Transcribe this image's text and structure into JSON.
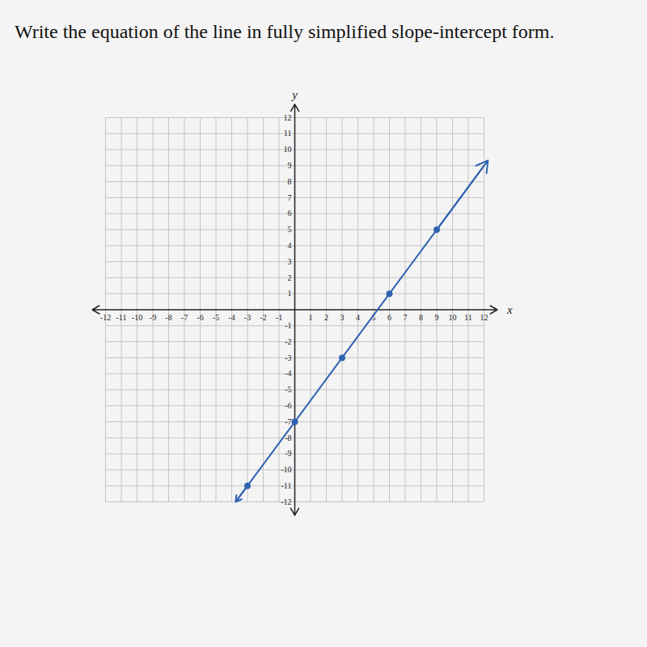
{
  "chart_data": {
    "type": "line",
    "title": "Write the equation of the line in fully simplified slope-intercept form.",
    "x_label": "x",
    "y_label": "y",
    "x": [
      -3.75,
      -3,
      0,
      3,
      6,
      9,
      12.25
    ],
    "values": [
      -12,
      -11,
      -7,
      -3,
      1,
      5,
      9.33
    ],
    "color": "#2f62b0",
    "marker": "circle",
    "xlim": [
      -12,
      12
    ],
    "ylim": [
      -12,
      12
    ],
    "xticks": [
      -12,
      -11,
      -10,
      -9,
      -8,
      -7,
      -6,
      -5,
      -4,
      -3,
      -2,
      -1,
      1,
      2,
      3,
      4,
      5,
      6,
      7,
      8,
      9,
      10,
      11,
      12
    ],
    "yticks": [
      -12,
      -11,
      -10,
      -9,
      -8,
      -7,
      -6,
      -5,
      -4,
      -3,
      -2,
      -1,
      1,
      2,
      3,
      4,
      5,
      6,
      7,
      8,
      9,
      10,
      11,
      12
    ],
    "grid": true
  }
}
